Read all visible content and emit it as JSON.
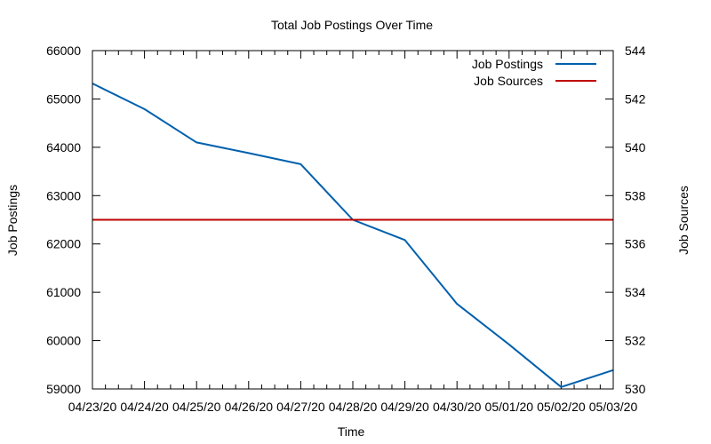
{
  "chart_data": {
    "type": "line",
    "title": "Total Job Postings Over Time",
    "xlabel": "Time",
    "ylabel": "Job Postings",
    "y2label": "Job Sources",
    "categories": [
      "04/23/20",
      "04/24/20",
      "04/25/20",
      "04/26/20",
      "04/27/20",
      "04/28/20",
      "04/29/20",
      "04/30/20",
      "05/01/20",
      "05/02/20",
      "05/03/20"
    ],
    "ylim": [
      59000,
      66000
    ],
    "yticks": [
      59000,
      60000,
      61000,
      62000,
      63000,
      64000,
      65000,
      66000
    ],
    "y2lim": [
      530,
      544
    ],
    "y2ticks": [
      530,
      532,
      534,
      536,
      538,
      540,
      542,
      544
    ],
    "legend_position": "top-right",
    "series": [
      {
        "name": "Job Postings",
        "axis": "left",
        "color": "#0060ad",
        "values": [
          65320,
          64790,
          64100,
          63880,
          63650,
          62500,
          62080,
          60760,
          59920,
          59040,
          59390
        ]
      },
      {
        "name": "Job Sources",
        "axis": "right",
        "color": "#c00000",
        "values": [
          537,
          537,
          537,
          537,
          537,
          537,
          537,
          537,
          537,
          537,
          537
        ]
      }
    ]
  }
}
